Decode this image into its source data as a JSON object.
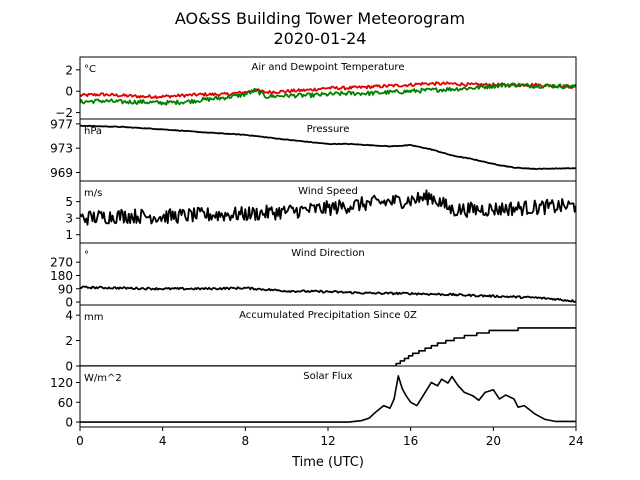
{
  "figure": {
    "title_line1": "AO&SS Building Tower Meteorogram",
    "title_line2": "2020-01-24"
  },
  "colors": {
    "temperature": "#e00000",
    "dewpoint": "#008000",
    "line": "#000000"
  },
  "chart_data": {
    "type": "line",
    "shared_x": {
      "label": "Time (UTC)",
      "range": [
        0,
        24
      ],
      "ticks": [
        0,
        4,
        8,
        12,
        16,
        20,
        24
      ],
      "tick_labels": [
        "0",
        "4",
        "8",
        "12",
        "16",
        "20",
        "24"
      ]
    },
    "panels": [
      {
        "title": "Air and Dewpoint Temperature",
        "unit": "°C",
        "ylim": [
          -2.6,
          3.2
        ],
        "yticks": [
          -2,
          0,
          2
        ],
        "ytick_labels": [
          "−2",
          "0",
          "2"
        ],
        "series": [
          {
            "color": "#e00000",
            "x": [
              0,
              1,
              2,
              3,
              4,
              5,
              6,
              7,
              8,
              8.5,
              9,
              10,
              11,
              12,
              13,
              14,
              15,
              16,
              16.5,
              17,
              18,
              19,
              20,
              21,
              22,
              23,
              24
            ],
            "y": [
              -0.4,
              -0.3,
              -0.4,
              -0.5,
              -0.5,
              -0.4,
              -0.3,
              -0.3,
              -0.1,
              0.1,
              -0.1,
              0.0,
              0.1,
              0.3,
              0.3,
              0.4,
              0.5,
              0.6,
              0.7,
              0.7,
              0.7,
              0.6,
              0.6,
              0.6,
              0.6,
              0.5,
              0.4
            ],
            "noise": 0.15
          },
          {
            "color": "#008000",
            "x": [
              0,
              1,
              2,
              3,
              4,
              5,
              6,
              7,
              8,
              8.5,
              9,
              10,
              11,
              12,
              13,
              14,
              15,
              16,
              17,
              18,
              19,
              20,
              21,
              22,
              23,
              24
            ],
            "y": [
              -1.0,
              -0.9,
              -1.0,
              -1.0,
              -1.1,
              -1.0,
              -0.8,
              -0.6,
              -0.3,
              0.1,
              -0.5,
              -0.4,
              -0.4,
              -0.3,
              -0.2,
              -0.2,
              -0.1,
              0.0,
              0.1,
              0.2,
              0.3,
              0.5,
              0.6,
              0.5,
              0.5,
              0.4
            ],
            "noise": 0.2
          }
        ]
      },
      {
        "title": "Pressure",
        "unit": "hPa",
        "ylim": [
          967.6,
          977.8
        ],
        "yticks": [
          969,
          973,
          977
        ],
        "ytick_labels": [
          "969",
          "973",
          "977"
        ],
        "series": [
          {
            "color": "#000000",
            "x": [
              0,
              2,
              4,
              6,
              8,
              10,
              12,
              13,
              15,
              16,
              17,
              18,
              19,
              20,
              21,
              22,
              24
            ],
            "y": [
              976.7,
              976.5,
              976.1,
              975.6,
              975.2,
              974.4,
              973.7,
              973.7,
              973.3,
              973.5,
              972.8,
              971.8,
              971.2,
              970.4,
              969.8,
              969.6,
              969.7
            ],
            "noise": 0.05
          }
        ]
      },
      {
        "title": "Wind Speed",
        "unit": "m/s",
        "ylim": [
          0,
          7.5
        ],
        "yticks": [
          1,
          3,
          5
        ],
        "ytick_labels": [
          "1",
          "3",
          "5"
        ],
        "series": [
          {
            "color": "#000000",
            "x": [
              0,
              2,
              4,
              6,
              8,
              10,
              12,
              14,
              16,
              17,
              18,
              20,
              22,
              24
            ],
            "y": [
              3.0,
              3.3,
              3.2,
              3.4,
              3.5,
              3.8,
              4.2,
              4.8,
              5.2,
              5.6,
              4.0,
              4.1,
              4.3,
              4.5
            ],
            "noise": 0.9
          }
        ]
      },
      {
        "title": "Wind Direction",
        "unit": "°",
        "ylim": [
          -20,
          400
        ],
        "yticks": [
          0,
          90,
          180,
          270
        ],
        "ytick_labels": [
          "0",
          "90",
          "180",
          "270"
        ],
        "series": [
          {
            "color": "#000000",
            "x": [
              0,
              2,
              4,
              6,
              8,
              10,
              12,
              14,
              16,
              18,
              20,
              22,
              23,
              24
            ],
            "y": [
              100,
              95,
              90,
              90,
              95,
              75,
              70,
              60,
              58,
              50,
              40,
              30,
              20,
              5
            ],
            "noise": 7
          }
        ]
      },
      {
        "title": "Accumulated Precipitation Since 0Z",
        "unit": "mm",
        "ylim": [
          0,
          4.8
        ],
        "yticks": [
          0,
          2,
          4
        ],
        "ytick_labels": [
          "0",
          "2",
          "4"
        ],
        "series": [
          {
            "color": "#000000",
            "step": true,
            "x": [
              0,
              15.3,
              15.5,
              15.7,
              15.9,
              16.1,
              16.4,
              16.7,
              17.0,
              17.3,
              17.7,
              18.1,
              18.6,
              19.2,
              19.8,
              20.3,
              21.2,
              22.0,
              24
            ],
            "y": [
              0,
              0.2,
              0.4,
              0.6,
              0.8,
              1.0,
              1.2,
              1.4,
              1.6,
              1.8,
              2.0,
              2.2,
              2.4,
              2.6,
              2.8,
              2.8,
              3.0,
              3.0,
              3.0
            ]
          }
        ]
      },
      {
        "title": "Solar Flux",
        "unit": "W/m^2",
        "ylim": [
          -15,
          170
        ],
        "yticks": [
          0,
          60,
          120
        ],
        "ytick_labels": [
          "0",
          "60",
          "120"
        ],
        "series": [
          {
            "color": "#000000",
            "x": [
              0,
              13,
              13.6,
              14,
              14.3,
              14.7,
              15.0,
              15.2,
              15.4,
              15.6,
              15.8,
              16.0,
              16.3,
              16.6,
              17.0,
              17.3,
              17.5,
              17.8,
              18.0,
              18.3,
              18.6,
              19.0,
              19.3,
              19.6,
              20.0,
              20.3,
              20.6,
              21.0,
              21.2,
              21.5,
              22.0,
              22.5,
              23.0,
              24
            ],
            "y": [
              0,
              0,
              4,
              12,
              30,
              50,
              42,
              70,
              140,
              100,
              78,
              60,
              50,
              80,
              120,
              110,
              130,
              118,
              138,
              110,
              90,
              80,
              66,
              90,
              98,
              70,
              82,
              70,
              45,
              50,
              25,
              8,
              2,
              2
            ]
          }
        ]
      }
    ]
  }
}
